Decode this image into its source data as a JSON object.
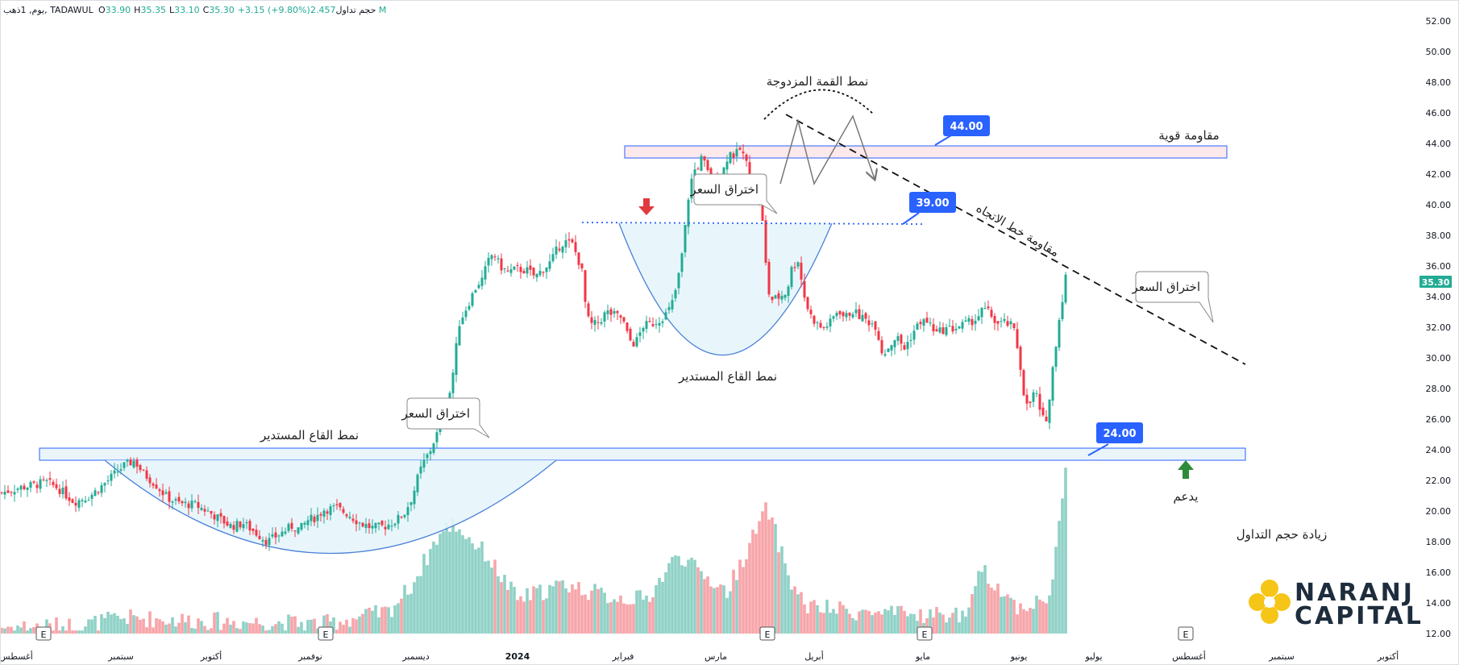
{
  "header": {
    "symbol_line": "يوم, 1ذهب, TADAWUL",
    "o_label": "O",
    "o_value": "33.90",
    "h_label": "H",
    "h_value": "35.35",
    "l_label": "L",
    "l_value": "33.10",
    "c_label": "C",
    "c_value": "35.30",
    "change": "+3.15 (+9.80%)",
    "volume_label": "حجم تداول",
    "volume_value": "2.457 M"
  },
  "colors": {
    "up": "#22ab94",
    "down": "#f23645",
    "vol_up": "#8fd1c6",
    "vol_down": "#f7a5a9",
    "zone_fill": "#e9f4fb",
    "zone_stroke": "#2962ff",
    "resistance_fill": "#fde8ec",
    "badge": "#2962ff",
    "price_label": "#22ab94",
    "brand_dark": "#1e2d3d",
    "brand_gold": "#f5c518"
  },
  "annotations": {
    "double_top": "نمط القمة المزدوجة",
    "strong_resistance": "مقاومة قوية",
    "trendline_resistance": "مقاومة خط الاتجاه",
    "breakout_1": "اختراق السعر",
    "breakout_2": "اختراق السعر",
    "breakout_3": "اختراق السعر",
    "rounding_bottom_1": "نمط القاع المستدير",
    "rounding_bottom_2": "نمط القاع المستدير",
    "support": "يدعم",
    "volume_increase": "زيادة حجم التداول",
    "level_44": "44.00",
    "level_39": "39.00",
    "level_24": "24.00",
    "last_price": "35.30",
    "earnings_marker": "E"
  },
  "brand": {
    "line1": "NARANJ",
    "line2": "CAPITAL"
  },
  "chart_data": {
    "type": "candlestick",
    "y_axis": {
      "ticks": [
        "52.00",
        "50.00",
        "48.00",
        "46.00",
        "44.00",
        "42.00",
        "40.00",
        "38.00",
        "36.00",
        "34.00",
        "32.00",
        "30.00",
        "28.00",
        "26.00",
        "24.00",
        "22.00",
        "20.00",
        "18.00",
        "16.00",
        "14.00",
        "12.00"
      ],
      "ylim": [
        12,
        53
      ]
    },
    "x_axis": {
      "ticks": [
        "أغسطس",
        "سبتمبر",
        "أكتوبر",
        "نوفمبر",
        "ديسمبر",
        "2024",
        "فبراير",
        "مارس",
        "أبريل",
        "مايو",
        "يونيو",
        "يوليو",
        "أغسطس",
        "سبتمبر",
        "أكتوبر"
      ]
    },
    "close_path": [
      [
        0,
        21.2
      ],
      [
        20,
        21.5
      ],
      [
        40,
        21.7
      ],
      [
        55,
        21.9
      ],
      [
        70,
        21.5
      ],
      [
        90,
        20.6
      ],
      [
        110,
        21.0
      ],
      [
        130,
        21.9
      ],
      [
        150,
        22.9
      ],
      [
        165,
        23.3
      ],
      [
        175,
        22.5
      ],
      [
        190,
        21.8
      ],
      [
        205,
        20.9
      ],
      [
        220,
        20.5
      ],
      [
        240,
        20.4
      ],
      [
        255,
        20.0
      ],
      [
        270,
        19.5
      ],
      [
        285,
        19.0
      ],
      [
        300,
        19.2
      ],
      [
        315,
        18.6
      ],
      [
        330,
        18.0
      ],
      [
        345,
        18.5
      ],
      [
        360,
        19.0
      ],
      [
        370,
        18.8
      ],
      [
        380,
        19.4
      ],
      [
        390,
        19.6
      ],
      [
        400,
        20.1
      ],
      [
        415,
        20.2
      ],
      [
        430,
        19.8
      ],
      [
        445,
        19.2
      ],
      [
        460,
        18.9
      ],
      [
        475,
        19.0
      ],
      [
        490,
        19.4
      ],
      [
        500,
        19.9
      ],
      [
        510,
        21.0
      ],
      [
        518,
        22.5
      ],
      [
        525,
        23.3
      ],
      [
        532,
        24.0
      ],
      [
        538,
        24.8
      ],
      [
        545,
        25.6
      ],
      [
        552,
        26.9
      ],
      [
        558,
        28.2
      ],
      [
        563,
        30.3
      ],
      [
        568,
        32.3
      ],
      [
        575,
        33.1
      ],
      [
        583,
        34.0
      ],
      [
        590,
        34.8
      ],
      [
        596,
        35.1
      ],
      [
        603,
        36.2
      ],
      [
        610,
        36.9
      ],
      [
        618,
        36.0
      ],
      [
        628,
        35.6
      ],
      [
        640,
        35.8
      ],
      [
        652,
        35.7
      ],
      [
        662,
        35.3
      ],
      [
        672,
        35.8
      ],
      [
        682,
        36.3
      ],
      [
        690,
        37.2
      ],
      [
        698,
        37.6
      ],
      [
        708,
        37.4
      ],
      [
        715,
        36.5
      ],
      [
        720,
        35.6
      ],
      [
        726,
        32.6
      ],
      [
        733,
        32.1
      ],
      [
        742,
        32.4
      ],
      [
        750,
        33.0
      ],
      [
        760,
        32.8
      ],
      [
        770,
        32.6
      ],
      [
        778,
        31.2
      ],
      [
        786,
        30.9
      ],
      [
        796,
        32.1
      ],
      [
        806,
        32.2
      ],
      [
        816,
        32.5
      ],
      [
        825,
        32.9
      ],
      [
        831,
        33.4
      ],
      [
        837,
        34.6
      ],
      [
        842,
        35.9
      ],
      [
        847,
        38.0
      ],
      [
        852,
        40.5
      ],
      [
        858,
        42.2
      ],
      [
        863,
        42.4
      ],
      [
        868,
        43.0
      ],
      [
        874,
        42.5
      ],
      [
        880,
        41.3
      ],
      [
        886,
        41.7
      ],
      [
        892,
        41.3
      ],
      [
        898,
        42.9
      ],
      [
        904,
        43.4
      ],
      [
        910,
        43.2
      ],
      [
        916,
        43.6
      ],
      [
        922,
        43.1
      ],
      [
        928,
        41.8
      ],
      [
        934,
        41.2
      ],
      [
        940,
        40.1
      ],
      [
        945,
        38.5
      ],
      [
        950,
        34.5
      ],
      [
        955,
        33.8
      ],
      [
        962,
        33.9
      ],
      [
        968,
        34.1
      ],
      [
        974,
        34.3
      ],
      [
        980,
        35.8
      ],
      [
        988,
        36.4
      ],
      [
        995,
        34.2
      ],
      [
        1002,
        32.9
      ],
      [
        1010,
        32.3
      ],
      [
        1018,
        31.9
      ],
      [
        1028,
        32.3
      ],
      [
        1038,
        33.2
      ],
      [
        1046,
        32.6
      ],
      [
        1055,
        33.1
      ],
      [
        1065,
        32.7
      ],
      [
        1075,
        32.4
      ],
      [
        1085,
        32.1
      ],
      [
        1093,
        30.2
      ],
      [
        1100,
        30.7
      ],
      [
        1110,
        31.4
      ],
      [
        1120,
        30.6
      ],
      [
        1130,
        31.6
      ],
      [
        1140,
        32.4
      ],
      [
        1150,
        32.3
      ],
      [
        1160,
        31.6
      ],
      [
        1170,
        31.9
      ],
      [
        1180,
        31.9
      ],
      [
        1190,
        32.1
      ],
      [
        1200,
        32.3
      ],
      [
        1210,
        32.6
      ],
      [
        1218,
        33.2
      ],
      [
        1226,
        32.9
      ],
      [
        1235,
        32.2
      ],
      [
        1245,
        32.3
      ],
      [
        1255,
        32.0
      ],
      [
        1262,
        30.2
      ],
      [
        1268,
        27.8
      ],
      [
        1273,
        26.6
      ],
      [
        1278,
        27.4
      ],
      [
        1283,
        27.9
      ],
      [
        1288,
        26.4
      ],
      [
        1293,
        25.9
      ],
      [
        1298,
        26.3
      ],
      [
        1305,
        29.8
      ],
      [
        1311,
        32.2
      ],
      [
        1316,
        33.9
      ],
      [
        1320,
        35.3
      ]
    ],
    "volume_path": [
      [
        0,
        12.2
      ],
      [
        100,
        12.3
      ],
      [
        150,
        12.8
      ],
      [
        250,
        12.6
      ],
      [
        400,
        12.4
      ],
      [
        480,
        13.2
      ],
      [
        510,
        15.0
      ],
      [
        540,
        18.0
      ],
      [
        560,
        19.0
      ],
      [
        600,
        17.0
      ],
      [
        640,
        14.0
      ],
      [
        700,
        15.0
      ],
      [
        750,
        14.2
      ],
      [
        800,
        14.0
      ],
      [
        840,
        17.0
      ],
      [
        860,
        16.0
      ],
      [
        900,
        14.5
      ],
      [
        950,
        20.0
      ],
      [
        980,
        15.0
      ],
      [
        1000,
        13.5
      ],
      [
        1100,
        13.0
      ],
      [
        1200,
        13.0
      ],
      [
        1215,
        16.0
      ],
      [
        1260,
        13.5
      ],
      [
        1300,
        14.0
      ],
      [
        1320,
        22.2
      ]
    ],
    "seed": 7
  }
}
